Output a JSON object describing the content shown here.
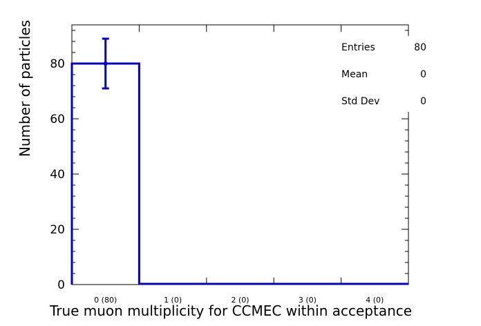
{
  "chart_data": {
    "type": "bar",
    "title": "",
    "xlabel": "True muon multiplicity for CCMEC within acceptance",
    "ylabel": "Number of particles",
    "categories": [
      "0 (80)",
      "1 (0)",
      "2 (0)",
      "3 (0)",
      "4 (0)"
    ],
    "values": [
      80,
      0,
      0,
      0,
      0
    ],
    "error_bars": [
      {
        "category": "0 (80)",
        "low": 71,
        "high": 89
      }
    ],
    "ylim": [
      0,
      94
    ],
    "y_ticks": [
      "0",
      "20",
      "40",
      "60",
      "80"
    ],
    "grid": false,
    "line_color": "#0000cc",
    "legend": "none",
    "stats": [
      {
        "label": "Entries",
        "value": "80"
      },
      {
        "label": "Mean",
        "value": "0"
      },
      {
        "label": "Std Dev",
        "value": "0"
      }
    ]
  }
}
